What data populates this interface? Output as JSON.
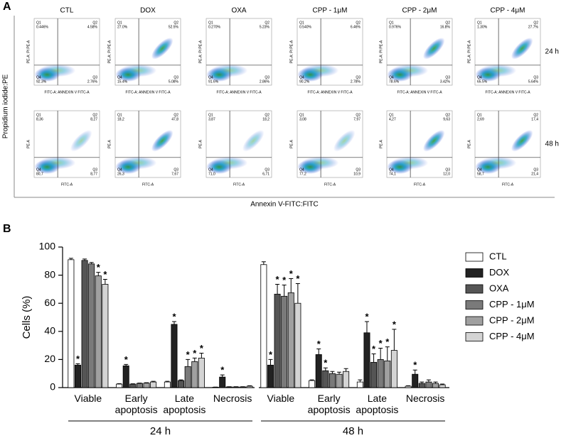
{
  "panel_a": {
    "letter": "A",
    "columns": [
      "CTL",
      "DOX",
      "OXA",
      "CPP - 1μM",
      "CPP - 2μM",
      "CPP - 4μM"
    ],
    "quadrant_names": [
      "Q1",
      "Q2",
      "Q4",
      "Q3"
    ],
    "rows": [
      {
        "label": "24 h",
        "x_axis": "FITC-A: ANNEXIN V FITC-A",
        "y_axis": "PE-A: PI PE-A",
        "quadrants": [
          [
            "0.446%",
            "4.58%",
            "92.3%",
            "2.76%"
          ],
          [
            "27.0%",
            "52.5%",
            "15.4%",
            "5.08%"
          ],
          [
            "0.270%",
            "5.23%",
            "91.6%",
            "2.86%"
          ],
          [
            "0.540%",
            "6.46%",
            "90.2%",
            "2.78%"
          ],
          [
            "0.976%",
            "16.8%",
            "78.6%",
            "3.42%"
          ],
          [
            "1.30%",
            "27.7%",
            "65.5%",
            "5.64%"
          ]
        ]
      },
      {
        "label": "48 h",
        "x_axis": "FITC-A",
        "y_axis": "PE-A",
        "quadrants": [
          [
            "8,36",
            "8,27",
            "80,7",
            "8,77"
          ],
          [
            "18,2",
            "47,8",
            "26,3",
            "7,67"
          ],
          [
            "3,87",
            "18,2",
            "71,0",
            "6,71"
          ],
          [
            "3,08",
            "7,97",
            "77,2",
            "10,9"
          ],
          [
            "4,27",
            "9,63",
            "74,1",
            "12,0"
          ],
          [
            "2,69",
            "17,4",
            "58,7",
            "21,4"
          ]
        ]
      }
    ],
    "y_title": "Propidium iodide:PE",
    "x_title": "Annexin V-FITC:FITC"
  },
  "panel_b_letter": "B",
  "chart_data": {
    "type": "bar",
    "categories": [
      "Viable",
      "Early apoptosis",
      "Late apoptosis",
      "Necrosis",
      "Viable",
      "Early apoptosis",
      "Late apoptosis",
      "Necrosis"
    ],
    "group_labels": [
      "24 h",
      "48 h"
    ],
    "ylabel": "Cells (%)",
    "ylim": [
      0,
      100
    ],
    "yticks": [
      0,
      20,
      40,
      60,
      80,
      100
    ],
    "significance_marker": "*",
    "series": [
      {
        "name": "CTL",
        "color": "#ffffff",
        "values": [
          91,
          2.5,
          4,
          0.3,
          87.5,
          5,
          4,
          1
        ],
        "errors": [
          1,
          0.3,
          0.5,
          0.1,
          2,
          0.5,
          1.5,
          0.3
        ],
        "significant": []
      },
      {
        "name": "DOX",
        "color": "#222222",
        "values": [
          16,
          15.5,
          45,
          7.5,
          16,
          23.5,
          39,
          9.5
        ],
        "errors": [
          1,
          1,
          2,
          1.5,
          4,
          4,
          8,
          3
        ],
        "significant": [
          0,
          1,
          2,
          3,
          4,
          5,
          6,
          7
        ]
      },
      {
        "name": "OXA",
        "color": "#555555",
        "values": [
          90.5,
          2.5,
          5,
          0.5,
          66.5,
          12,
          18,
          3
        ],
        "errors": [
          1,
          0.2,
          0.5,
          0.1,
          7,
          2,
          6,
          1
        ],
        "significant": [
          4,
          5,
          6
        ]
      },
      {
        "name": "CPP - 1μM",
        "color": "#7a7a7a",
        "values": [
          88,
          3,
          15,
          0.5,
          65,
          10,
          20,
          4
        ],
        "errors": [
          1,
          0.2,
          5,
          0.1,
          8,
          1.5,
          8,
          1.5
        ],
        "significant": [
          2,
          4,
          6
        ]
      },
      {
        "name": "CPP - 2μM",
        "color": "#a0a0a0",
        "values": [
          79.5,
          3.2,
          18.5,
          0.5,
          67.5,
          9.5,
          19,
          3
        ],
        "errors": [
          2.5,
          0.3,
          2.5,
          0.1,
          10,
          1.5,
          10,
          1
        ],
        "significant": [
          0,
          2,
          4,
          6
        ]
      },
      {
        "name": "CPP - 4μM",
        "color": "#d4d4d4",
        "values": [
          73.5,
          4,
          21,
          1,
          60,
          11.5,
          26.5,
          2
        ],
        "errors": [
          3.5,
          0.5,
          3.5,
          0.3,
          14,
          2,
          15,
          0.5
        ],
        "significant": [
          0,
          2,
          4,
          6
        ]
      }
    ]
  }
}
